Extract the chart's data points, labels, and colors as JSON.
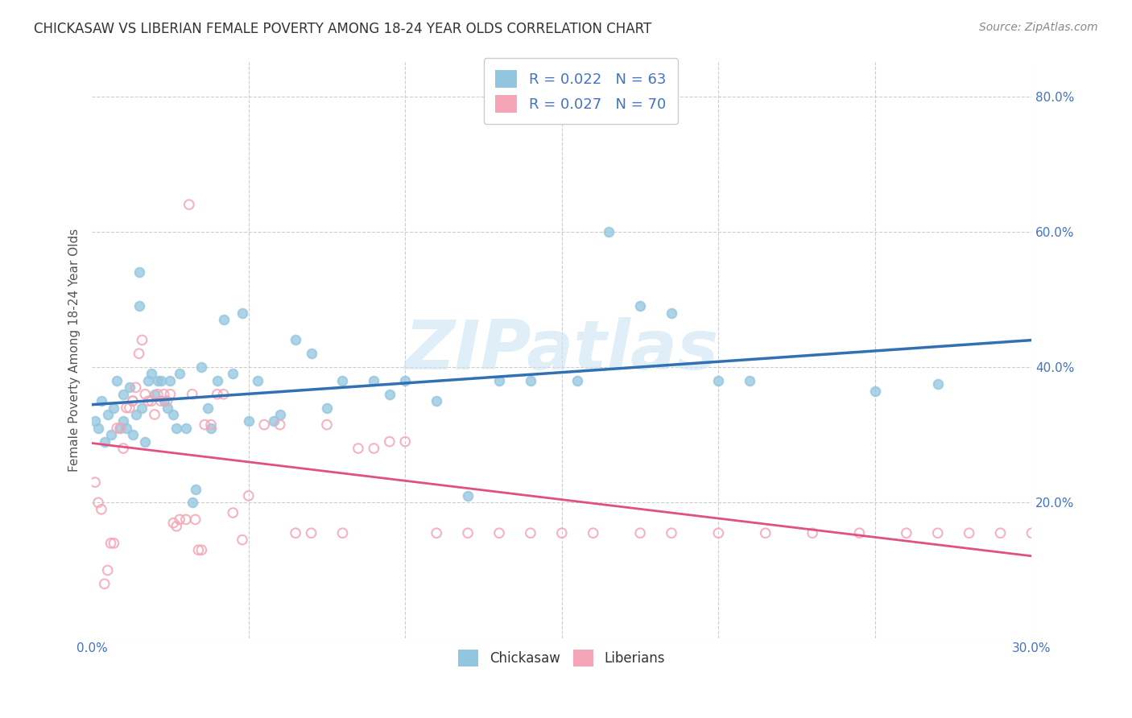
{
  "title": "CHICKASAW VS LIBERIAN FEMALE POVERTY AMONG 18-24 YEAR OLDS CORRELATION CHART",
  "source": "Source: ZipAtlas.com",
  "ylabel": "Female Poverty Among 18-24 Year Olds",
  "xlim": [
    0.0,
    0.3
  ],
  "ylim": [
    0.0,
    0.85
  ],
  "x_ticks": [
    0.0,
    0.05,
    0.1,
    0.15,
    0.2,
    0.25,
    0.3
  ],
  "y_ticks": [
    0.0,
    0.2,
    0.4,
    0.6,
    0.8
  ],
  "chickasaw_color": "#92c5de",
  "liberian_color": "#f4a6b8",
  "trend_chickasaw_color": "#3070b3",
  "trend_liberian_color": "#e05080",
  "background_color": "#ffffff",
  "grid_color": "#cccccc",
  "marker_size": 70,
  "watermark": "ZIPatlas",
  "chickasaw_x": [
    0.001,
    0.002,
    0.003,
    0.004,
    0.005,
    0.006,
    0.007,
    0.008,
    0.009,
    0.01,
    0.01,
    0.011,
    0.012,
    0.013,
    0.014,
    0.015,
    0.015,
    0.016,
    0.017,
    0.018,
    0.019,
    0.02,
    0.021,
    0.022,
    0.023,
    0.024,
    0.025,
    0.026,
    0.027,
    0.028,
    0.03,
    0.032,
    0.033,
    0.035,
    0.037,
    0.038,
    0.04,
    0.042,
    0.045,
    0.048,
    0.05,
    0.053,
    0.058,
    0.06,
    0.065,
    0.07,
    0.075,
    0.08,
    0.09,
    0.095,
    0.1,
    0.11,
    0.12,
    0.13,
    0.14,
    0.155,
    0.165,
    0.175,
    0.185,
    0.2,
    0.21,
    0.25,
    0.27
  ],
  "chickasaw_y": [
    0.32,
    0.31,
    0.35,
    0.29,
    0.33,
    0.3,
    0.34,
    0.38,
    0.31,
    0.32,
    0.36,
    0.31,
    0.37,
    0.3,
    0.33,
    0.54,
    0.49,
    0.34,
    0.29,
    0.38,
    0.39,
    0.36,
    0.38,
    0.38,
    0.35,
    0.34,
    0.38,
    0.33,
    0.31,
    0.39,
    0.31,
    0.2,
    0.22,
    0.4,
    0.34,
    0.31,
    0.38,
    0.47,
    0.39,
    0.48,
    0.32,
    0.38,
    0.32,
    0.33,
    0.44,
    0.42,
    0.34,
    0.38,
    0.38,
    0.36,
    0.38,
    0.35,
    0.21,
    0.38,
    0.38,
    0.38,
    0.6,
    0.49,
    0.48,
    0.38,
    0.38,
    0.365,
    0.375
  ],
  "liberian_x": [
    0.001,
    0.002,
    0.003,
    0.004,
    0.005,
    0.006,
    0.007,
    0.008,
    0.009,
    0.01,
    0.011,
    0.012,
    0.013,
    0.013,
    0.014,
    0.015,
    0.016,
    0.017,
    0.018,
    0.019,
    0.02,
    0.021,
    0.022,
    0.023,
    0.024,
    0.025,
    0.026,
    0.027,
    0.028,
    0.03,
    0.031,
    0.032,
    0.033,
    0.034,
    0.035,
    0.036,
    0.038,
    0.04,
    0.042,
    0.045,
    0.048,
    0.05,
    0.055,
    0.06,
    0.065,
    0.07,
    0.075,
    0.08,
    0.085,
    0.09,
    0.095,
    0.1,
    0.11,
    0.12,
    0.13,
    0.14,
    0.15,
    0.16,
    0.175,
    0.185,
    0.2,
    0.215,
    0.23,
    0.245,
    0.26,
    0.27,
    0.28,
    0.29,
    0.3,
    0.31
  ],
  "liberian_y": [
    0.23,
    0.2,
    0.19,
    0.08,
    0.1,
    0.14,
    0.14,
    0.31,
    0.31,
    0.28,
    0.34,
    0.34,
    0.35,
    0.35,
    0.37,
    0.42,
    0.44,
    0.36,
    0.35,
    0.35,
    0.33,
    0.36,
    0.35,
    0.36,
    0.35,
    0.36,
    0.17,
    0.165,
    0.175,
    0.175,
    0.64,
    0.36,
    0.175,
    0.13,
    0.13,
    0.315,
    0.315,
    0.36,
    0.36,
    0.185,
    0.145,
    0.21,
    0.315,
    0.315,
    0.155,
    0.155,
    0.315,
    0.155,
    0.28,
    0.28,
    0.29,
    0.29,
    0.155,
    0.155,
    0.155,
    0.155,
    0.155,
    0.155,
    0.155,
    0.155,
    0.155,
    0.155,
    0.155,
    0.155,
    0.155,
    0.155,
    0.155,
    0.155,
    0.155,
    0.155
  ]
}
